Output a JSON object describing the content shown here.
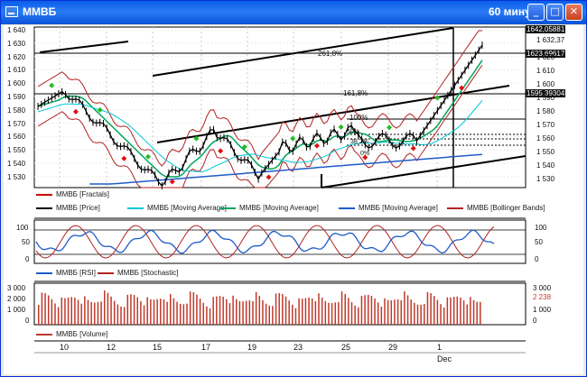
{
  "window": {
    "title": "ММВБ",
    "period": "60 минут",
    "minimize_label": "_",
    "maximize_label": "□",
    "close_label": "✕"
  },
  "colors": {
    "price": "#000000",
    "fractals": "#cc0000",
    "ma_fast": "#00a65a",
    "ma_slow": "#00c8d8",
    "ma_long": "#1f5bc8",
    "bollinger": "#b22222",
    "rsi": "#1f5bc8",
    "stochastic": "#b22222",
    "volume": "#c0392b"
  },
  "price_panel": {
    "y_ticks": [
      "1 640",
      "1 630",
      "1 620",
      "1 610",
      "1 600",
      "1 590",
      "1 580",
      "1 570",
      "1 560",
      "1 550",
      "1 540",
      "1 530"
    ],
    "y_ticks_right": [
      "1 632,37",
      "1 620",
      "1 610",
      "1 600",
      "1 590",
      "1 580",
      "1 570",
      "1 560",
      "1 550",
      "1 540",
      "1 530"
    ],
    "last_price_box": "1642,05881",
    "fib_box_1": "1623,69617",
    "fib_box_2": "1595,39304",
    "fib_labels": [
      "261,8%",
      "161,8%",
      "100%",
      "50%",
      "38,2%",
      "0%"
    ],
    "legend": [
      {
        "label": "ММВБ [Fractals]",
        "color_key": "fractals"
      },
      {
        "label": "ММВБ [Price]",
        "color_key": "price"
      },
      {
        "label": "ММВБ [Moving Average]",
        "color_key": "ma_slow"
      },
      {
        "label": "ММВБ [Moving Average]",
        "color_key": "ma_fast"
      },
      {
        "label": "ММВБ [Moving Average]",
        "color_key": "ma_long"
      },
      {
        "label": "ММВБ [Bollinger Bands]",
        "color_key": "bollinger"
      }
    ]
  },
  "osc_panel": {
    "y_ticks": [
      "100",
      "50",
      "0"
    ],
    "y_ticks_right": [
      "100",
      "50",
      "0"
    ],
    "legend": [
      {
        "label": "ММВБ [RSI]",
        "color_key": "rsi"
      },
      {
        "label": "ММВБ [Stochastic]",
        "color_key": "stochastic"
      }
    ]
  },
  "volume_panel": {
    "y_ticks": [
      "3 000",
      "2 000",
      "1 000",
      "0"
    ],
    "y_ticks_right": [
      "3 000",
      "1 000",
      "0"
    ],
    "last_value": "2 238",
    "legend": [
      {
        "label": "ММВБ [Volume]",
        "color_key": "volume"
      }
    ]
  },
  "x_axis": {
    "labels": [
      "10",
      "12",
      "15",
      "17",
      "19",
      "23",
      "25",
      "29",
      "1"
    ],
    "month_label": "Dec"
  }
}
